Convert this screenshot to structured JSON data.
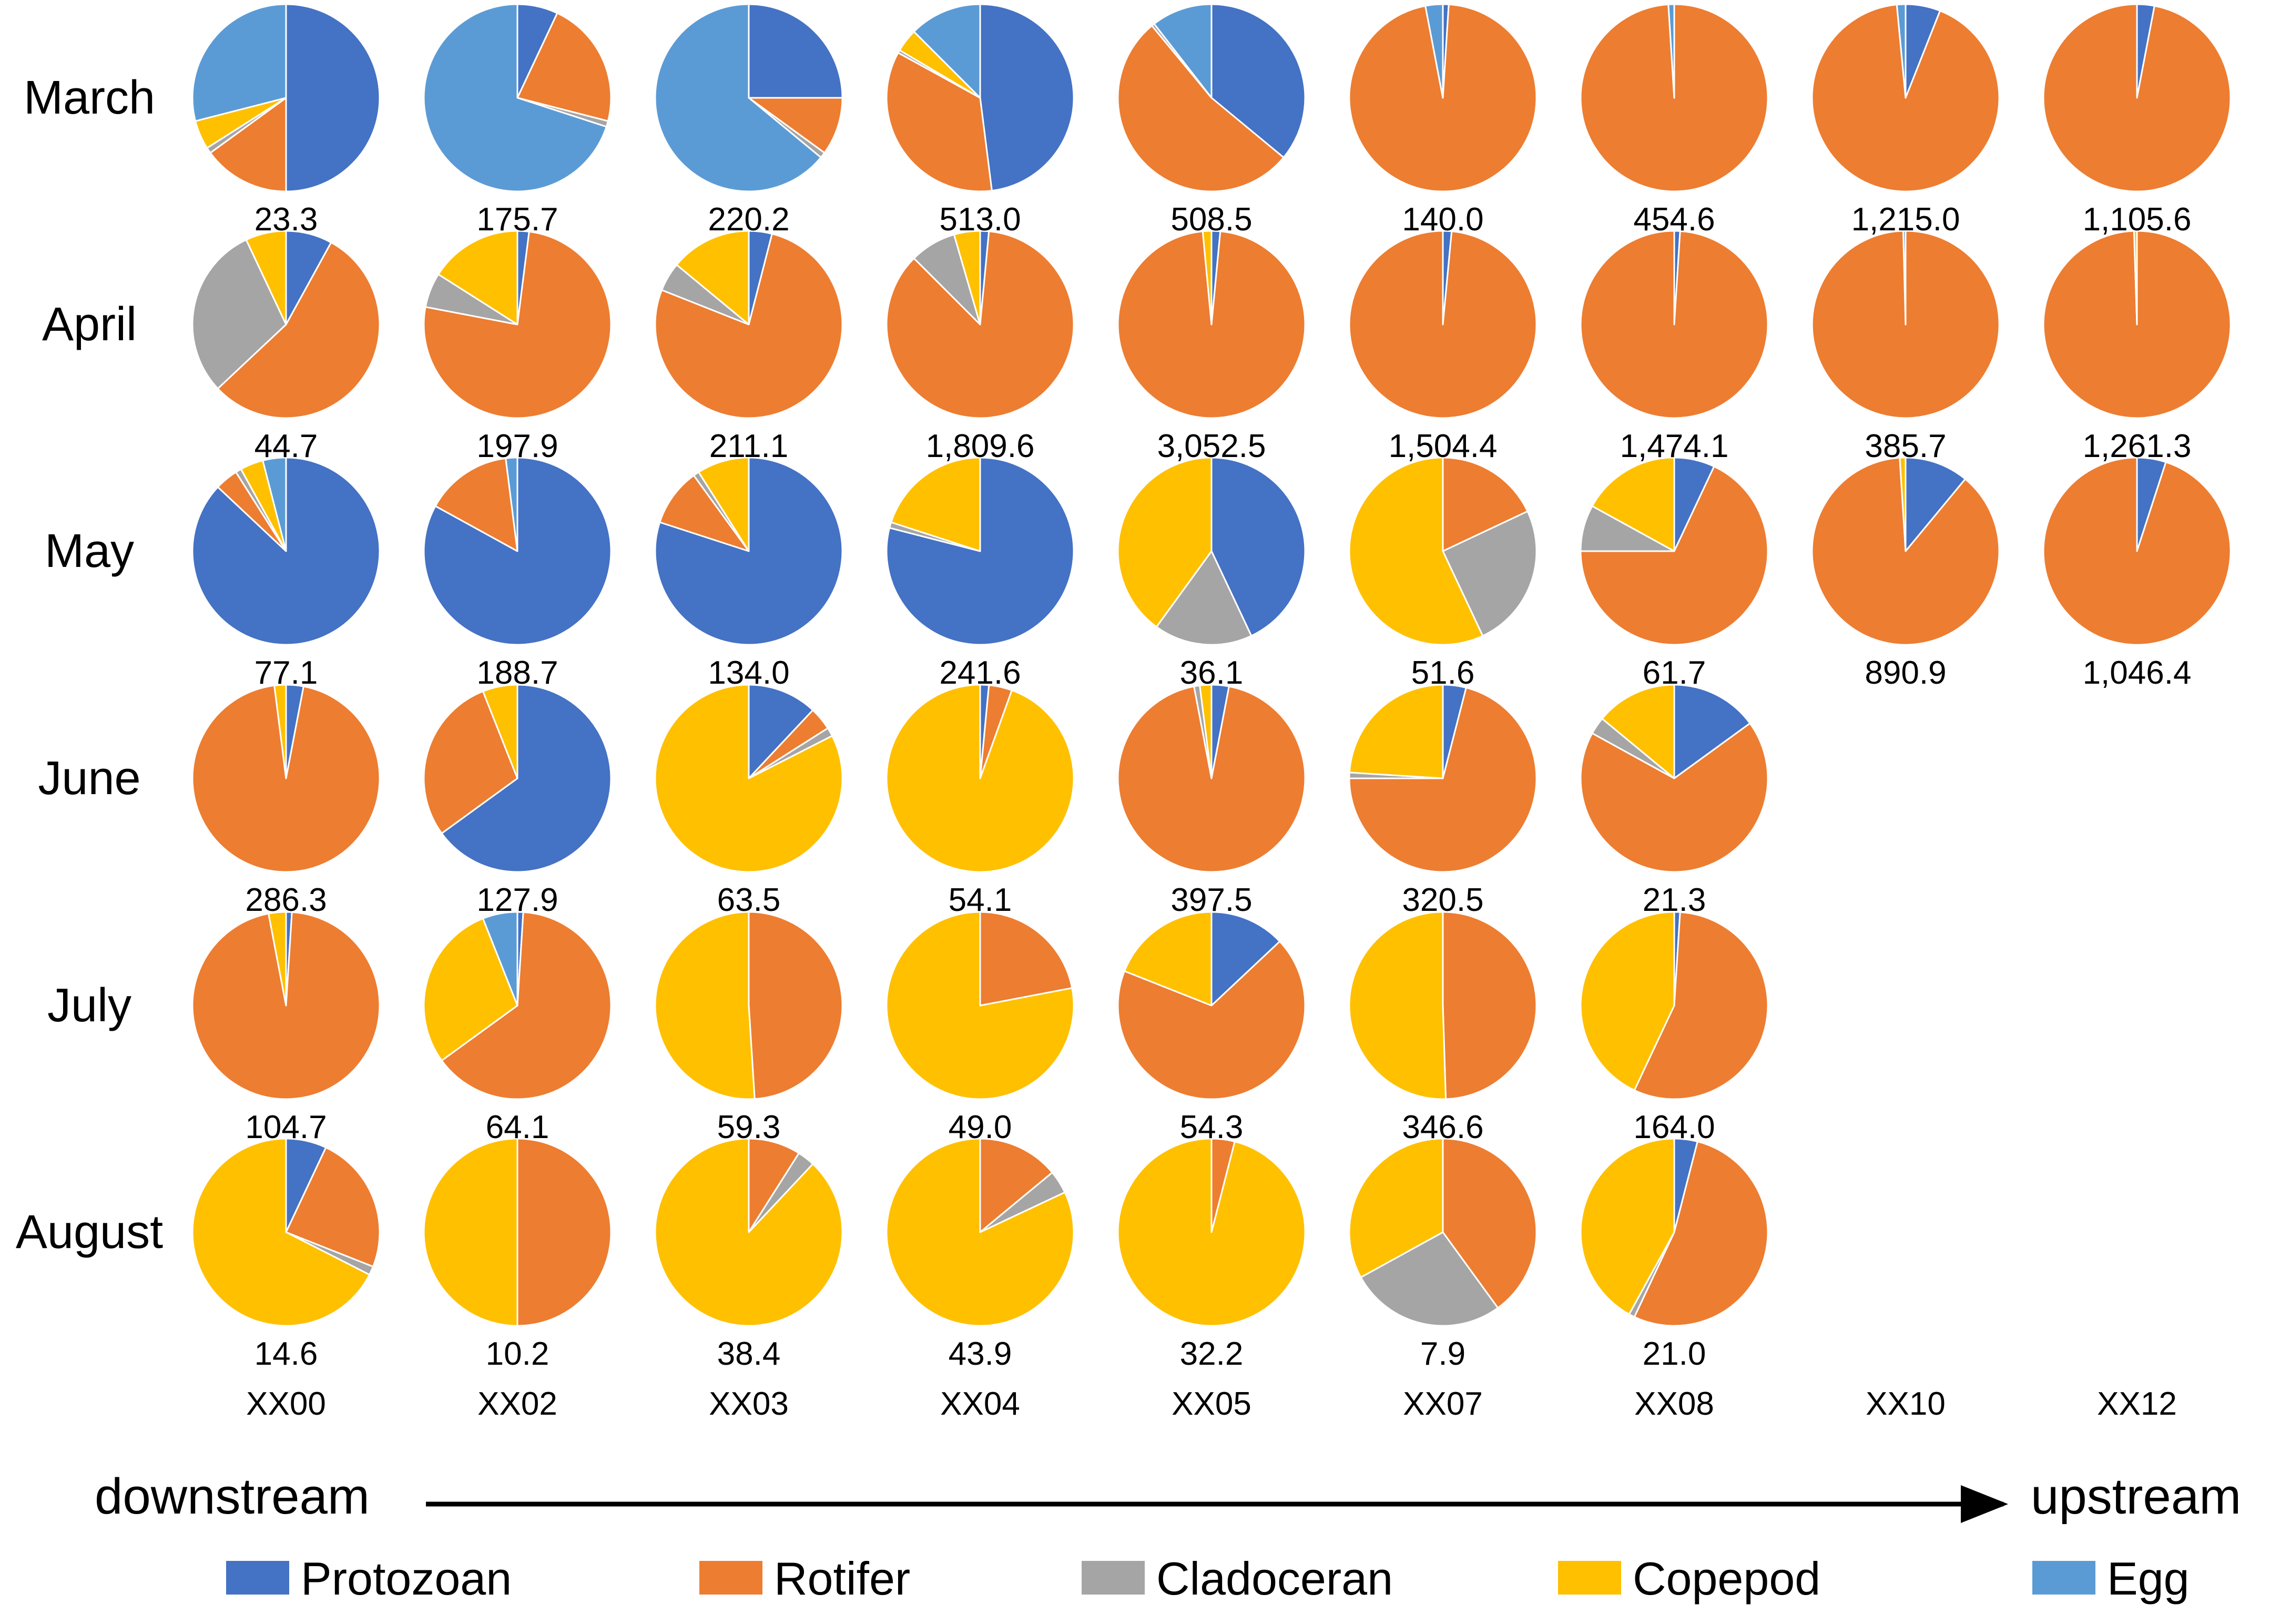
{
  "chart_data": {
    "type": "pie",
    "title": "",
    "layout": "grid of pie charts: rows = months, columns = sampling sites",
    "months": [
      "March",
      "April",
      "May",
      "June",
      "July",
      "August"
    ],
    "sites": [
      "XX00",
      "XX02",
      "XX03",
      "XX04",
      "XX05",
      "XX07",
      "XX08",
      "XX10",
      "XX12"
    ],
    "categories": [
      "Protozoan",
      "Rotifer",
      "Cladoceran",
      "Copepod",
      "Egg"
    ],
    "colors": {
      "Protozoan": "#4472C4",
      "Rotifer": "#ED7D31",
      "Cladoceran": "#A5A5A5",
      "Copepod": "#FFC000",
      "Egg": "#5B9BD5"
    },
    "direction": {
      "left": "downstream",
      "right": "upstream"
    },
    "pies": [
      {
        "month": "March",
        "site": "XX00",
        "total": "23.3",
        "shares": [
          50,
          15,
          1,
          5,
          29
        ]
      },
      {
        "month": "March",
        "site": "XX02",
        "total": "175.7",
        "shares": [
          7,
          22,
          1,
          0,
          70
        ]
      },
      {
        "month": "March",
        "site": "XX03",
        "total": "220.2",
        "shares": [
          25,
          10,
          1,
          0,
          64
        ]
      },
      {
        "month": "March",
        "site": "XX04",
        "total": "513.0",
        "shares": [
          48,
          35,
          0.5,
          4,
          12.5
        ]
      },
      {
        "month": "March",
        "site": "XX05",
        "total": "508.5",
        "shares": [
          36,
          53,
          0.5,
          0,
          10.5
        ]
      },
      {
        "month": "March",
        "site": "XX07",
        "total": "140.0",
        "shares": [
          1,
          96,
          0,
          0,
          3
        ]
      },
      {
        "month": "March",
        "site": "XX08",
        "total": "454.6",
        "shares": [
          0,
          99,
          0,
          0,
          1
        ]
      },
      {
        "month": "March",
        "site": "XX10",
        "total": "1,215.0",
        "shares": [
          6,
          92.5,
          0,
          0,
          1.5
        ]
      },
      {
        "month": "March",
        "site": "XX12",
        "total": "1,105.6",
        "shares": [
          3,
          97,
          0,
          0,
          0
        ]
      },
      {
        "month": "April",
        "site": "XX00",
        "total": "44.7",
        "shares": [
          8,
          55,
          30,
          7,
          0
        ]
      },
      {
        "month": "April",
        "site": "XX02",
        "total": "197.9",
        "shares": [
          2,
          76,
          6,
          16,
          0
        ]
      },
      {
        "month": "April",
        "site": "XX03",
        "total": "211.1",
        "shares": [
          4,
          77,
          5,
          14,
          0
        ]
      },
      {
        "month": "April",
        "site": "XX04",
        "total": "1,809.6",
        "shares": [
          1.5,
          86,
          8,
          4.5,
          0
        ]
      },
      {
        "month": "April",
        "site": "XX05",
        "total": "3,052.5",
        "shares": [
          1.5,
          97,
          0,
          1.5,
          0
        ]
      },
      {
        "month": "April",
        "site": "XX07",
        "total": "1,504.4",
        "shares": [
          1.5,
          98.5,
          0,
          0,
          0
        ]
      },
      {
        "month": "April",
        "site": "XX08",
        "total": "1,474.1",
        "shares": [
          1,
          99,
          0,
          0,
          0
        ]
      },
      {
        "month": "April",
        "site": "XX10",
        "total": "385.7",
        "shares": [
          0,
          99.6,
          0,
          0,
          0.4
        ]
      },
      {
        "month": "April",
        "site": "XX12",
        "total": "1,261.3",
        "shares": [
          0,
          99.5,
          0,
          0.5,
          0
        ]
      },
      {
        "month": "May",
        "site": "XX00",
        "total": "77.1",
        "shares": [
          87,
          4,
          1,
          4,
          4
        ]
      },
      {
        "month": "May",
        "site": "XX02",
        "total": "188.7",
        "shares": [
          83,
          15,
          0,
          0,
          2
        ]
      },
      {
        "month": "May",
        "site": "XX03",
        "total": "134.0",
        "shares": [
          80,
          10,
          1,
          9,
          0
        ]
      },
      {
        "month": "May",
        "site": "XX04",
        "total": "241.6",
        "shares": [
          79,
          0,
          1,
          20,
          0
        ]
      },
      {
        "month": "May",
        "site": "XX05",
        "total": "36.1",
        "shares": [
          43,
          0,
          17,
          40,
          0
        ]
      },
      {
        "month": "May",
        "site": "XX07",
        "total": "51.6",
        "shares": [
          0,
          18,
          25,
          57,
          0
        ]
      },
      {
        "month": "May",
        "site": "XX08",
        "total": "61.7",
        "shares": [
          7,
          68,
          8,
          17,
          0
        ]
      },
      {
        "month": "May",
        "site": "XX10",
        "total": "890.9",
        "shares": [
          11,
          88,
          0,
          1,
          0
        ]
      },
      {
        "month": "May",
        "site": "XX12",
        "total": "1,046.4",
        "shares": [
          5,
          95,
          0,
          0,
          0
        ]
      },
      {
        "month": "June",
        "site": "XX00",
        "total": "286.3",
        "shares": [
          3,
          95,
          0,
          2,
          0
        ]
      },
      {
        "month": "June",
        "site": "XX02",
        "total": "127.9",
        "shares": [
          65,
          29,
          0,
          6,
          0
        ]
      },
      {
        "month": "June",
        "site": "XX03",
        "total": "63.5",
        "shares": [
          12,
          4,
          1.5,
          82.5,
          0
        ]
      },
      {
        "month": "June",
        "site": "XX04",
        "total": "54.1",
        "shares": [
          1.5,
          4,
          0,
          94.5,
          0
        ]
      },
      {
        "month": "June",
        "site": "XX05",
        "total": "397.5",
        "shares": [
          3,
          94,
          1,
          2,
          0
        ]
      },
      {
        "month": "June",
        "site": "XX07",
        "total": "320.5",
        "shares": [
          4,
          71,
          1,
          24,
          0
        ]
      },
      {
        "month": "June",
        "site": "XX08",
        "total": "21.3",
        "shares": [
          15,
          68,
          3,
          14,
          0
        ]
      },
      {
        "month": "July",
        "site": "XX00",
        "total": "104.7",
        "shares": [
          1,
          96,
          0,
          3,
          0
        ]
      },
      {
        "month": "July",
        "site": "XX02",
        "total": "64.1",
        "shares": [
          1,
          64,
          0,
          29,
          6
        ]
      },
      {
        "month": "July",
        "site": "XX03",
        "total": "59.3",
        "shares": [
          0,
          49,
          0,
          51,
          0
        ]
      },
      {
        "month": "July",
        "site": "XX04",
        "total": "49.0",
        "shares": [
          0,
          22,
          0,
          78,
          0
        ]
      },
      {
        "month": "July",
        "site": "XX05",
        "total": "54.3",
        "shares": [
          13,
          68,
          0,
          19,
          0
        ]
      },
      {
        "month": "July",
        "site": "XX07",
        "total": "346.6",
        "shares": [
          0,
          49.5,
          0,
          50.5,
          0
        ]
      },
      {
        "month": "July",
        "site": "XX08",
        "total": "164.0",
        "shares": [
          1,
          56,
          0,
          43,
          0
        ]
      },
      {
        "month": "August",
        "site": "XX00",
        "total": "14.6",
        "shares": [
          7,
          24,
          1.5,
          67.5,
          0
        ]
      },
      {
        "month": "August",
        "site": "XX02",
        "total": "10.2",
        "shares": [
          0,
          50,
          0,
          50,
          0
        ]
      },
      {
        "month": "August",
        "site": "XX03",
        "total": "38.4",
        "shares": [
          0,
          9,
          3,
          88,
          0
        ]
      },
      {
        "month": "August",
        "site": "XX04",
        "total": "43.9",
        "shares": [
          0,
          14,
          4,
          82,
          0
        ]
      },
      {
        "month": "August",
        "site": "XX05",
        "total": "32.2",
        "shares": [
          0,
          4,
          0,
          96,
          0
        ]
      },
      {
        "month": "August",
        "site": "XX07",
        "total": "7.9",
        "shares": [
          0,
          40,
          27,
          33,
          0
        ]
      },
      {
        "month": "August",
        "site": "XX08",
        "total": "21.0",
        "shares": [
          4,
          53,
          1,
          42,
          0
        ]
      }
    ]
  }
}
